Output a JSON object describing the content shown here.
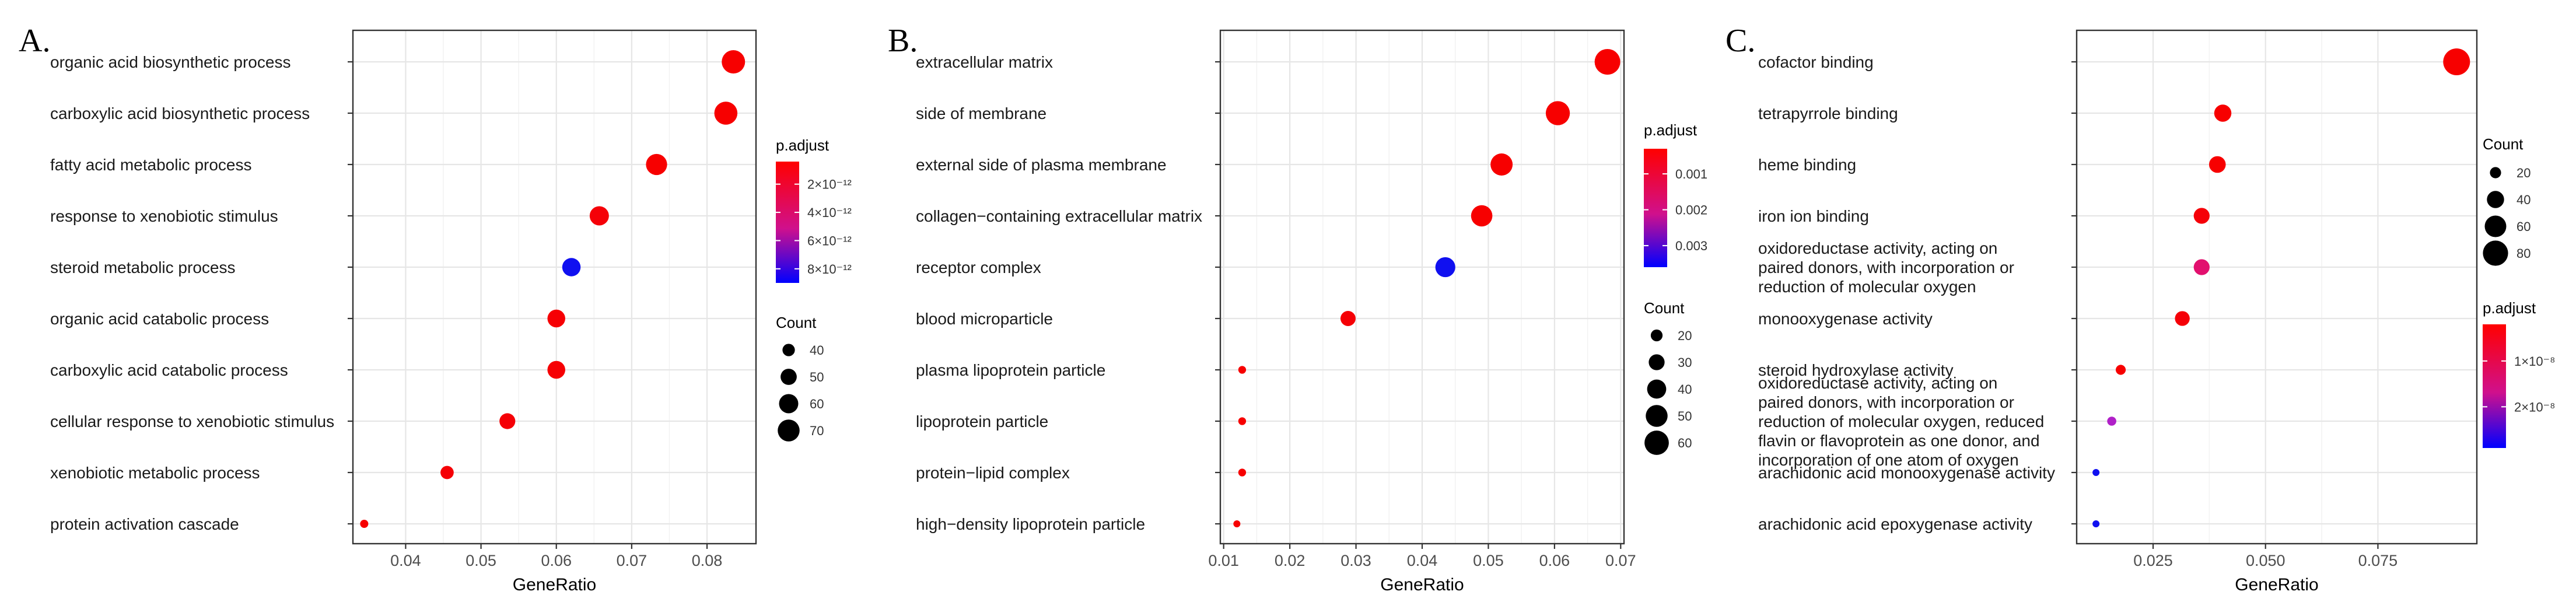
{
  "chart_data": [
    {
      "type": "scatter",
      "panel_label": "A.",
      "xlabel": "GeneRatio",
      "ylabel": "",
      "xlim": [
        0.033,
        0.0865
      ],
      "x_ticks": [
        "0.04",
        "0.05",
        "0.06",
        "0.07",
        "0.08"
      ],
      "x_tick_values": [
        0.04,
        0.05,
        0.06,
        0.07,
        0.08
      ],
      "grid": true,
      "legend_placement": "right",
      "categories": [
        "organic acid biosynthetic process",
        "carboxylic acid biosynthetic process",
        "fatty acid metabolic process",
        "response to xenobiotic stimulus",
        "steroid metabolic process",
        "organic acid catabolic process",
        "carboxylic acid catabolic process",
        "cellular response to xenobiotic stimulus",
        "xenobiotic metabolic process",
        "protein activation cascade"
      ],
      "points": [
        {
          "term": "organic acid biosynthetic process",
          "gene_ratio": 0.0835,
          "count": 76,
          "color": "#F70000"
        },
        {
          "term": "carboxylic acid biosynthetic process",
          "gene_ratio": 0.0825,
          "count": 75,
          "color": "#F70000"
        },
        {
          "term": "fatty acid metabolic process",
          "gene_ratio": 0.0733,
          "count": 67,
          "color": "#F70000"
        },
        {
          "term": "response to xenobiotic stimulus",
          "gene_ratio": 0.0657,
          "count": 60,
          "color": "#F50008"
        },
        {
          "term": "steroid metabolic process",
          "gene_ratio": 0.062,
          "count": 57,
          "color": "#1010F0"
        },
        {
          "term": "organic acid catabolic process",
          "gene_ratio": 0.06,
          "count": 55,
          "color": "#F60004"
        },
        {
          "term": "carboxylic acid catabolic process",
          "gene_ratio": 0.06,
          "count": 55,
          "color": "#F60004"
        },
        {
          "term": "cellular response to xenobiotic stimulus",
          "gene_ratio": 0.0535,
          "count": 49,
          "color": "#F50006"
        },
        {
          "term": "xenobiotic metabolic process",
          "gene_ratio": 0.0455,
          "count": 42,
          "color": "#F50006"
        },
        {
          "term": "protein activation cascade",
          "gene_ratio": 0.0345,
          "count": 32,
          "color": "#F70000"
        }
      ],
      "legend": {
        "color_title": "p.adjust",
        "color_ticks": [
          "2×10⁻¹²",
          "4×10⁻¹²",
          "6×10⁻¹²",
          "8×10⁻¹²"
        ],
        "color_tick_values": [
          2e-12,
          4e-12,
          6e-12,
          8e-12
        ],
        "color_range": [
          4e-13,
          9e-12
        ],
        "size_title": "Count",
        "size_labels": [
          "40",
          "50",
          "60",
          "70"
        ],
        "size_values": [
          40,
          50,
          60,
          70
        ],
        "count_range": [
          32,
          76
        ]
      }
    },
    {
      "type": "scatter",
      "panel_label": "B.",
      "xlabel": "GeneRatio",
      "ylabel": "",
      "xlim": [
        0.0095,
        0.0705
      ],
      "x_ticks": [
        "0.01",
        "0.02",
        "0.03",
        "0.04",
        "0.05",
        "0.06",
        "0.07"
      ],
      "x_tick_values": [
        0.01,
        0.02,
        0.03,
        0.04,
        0.05,
        0.06,
        0.07
      ],
      "grid": true,
      "legend_placement": "right",
      "categories": [
        "extracellular matrix",
        "side of membrane",
        "external side of plasma membrane",
        "collagen−containing extracellular matrix",
        "receptor complex",
        "blood microparticle",
        "plasma lipoprotein particle",
        "lipoprotein particle",
        "protein−lipid complex",
        "high−density lipoprotein particle"
      ],
      "points": [
        {
          "term": "extracellular matrix",
          "gene_ratio": 0.068,
          "count": 66,
          "color": "#F70000"
        },
        {
          "term": "side of membrane",
          "gene_ratio": 0.0605,
          "count": 59,
          "color": "#F70000"
        },
        {
          "term": "external side of plasma membrane",
          "gene_ratio": 0.052,
          "count": 51,
          "color": "#F70000"
        },
        {
          "term": "collagen−containing extracellular matrix",
          "gene_ratio": 0.049,
          "count": 48,
          "color": "#F70000"
        },
        {
          "term": "receptor complex",
          "gene_ratio": 0.0435,
          "count": 43,
          "color": "#1010F0"
        },
        {
          "term": "blood microparticle",
          "gene_ratio": 0.0288,
          "count": 28,
          "color": "#F50006"
        },
        {
          "term": "plasma lipoprotein particle",
          "gene_ratio": 0.0128,
          "count": 13,
          "color": "#F70000"
        },
        {
          "term": "lipoprotein particle",
          "gene_ratio": 0.0128,
          "count": 13,
          "color": "#F70000"
        },
        {
          "term": "protein−lipid complex",
          "gene_ratio": 0.0128,
          "count": 13,
          "color": "#F70000"
        },
        {
          "term": "high−density lipoprotein particle",
          "gene_ratio": 0.012,
          "count": 12,
          "color": "#F70000"
        }
      ],
      "legend": {
        "color_title": "p.adjust",
        "color_ticks": [
          "0.001",
          "0.002",
          "0.003"
        ],
        "color_tick_values": [
          0.001,
          0.002,
          0.003
        ],
        "color_range": [
          0.0003,
          0.0036
        ],
        "size_title": "Count",
        "size_labels": [
          "20",
          "30",
          "40",
          "50",
          "60"
        ],
        "size_values": [
          20,
          30,
          40,
          50,
          60
        ],
        "count_range": [
          12,
          66
        ]
      }
    },
    {
      "type": "scatter",
      "panel_label": "C.",
      "xlabel": "GeneRatio",
      "ylabel": "",
      "xlim": [
        0.008,
        0.097
      ],
      "x_ticks": [
        "0.025",
        "0.050",
        "0.075"
      ],
      "x_tick_values": [
        0.025,
        0.05,
        0.075
      ],
      "grid": true,
      "legend_placement": "right",
      "categories": [
        "cofactor binding",
        "tetrapyrrole binding",
        "heme binding",
        "iron ion binding",
        "oxidoreductase activity, acting on paired donors, with incorporation or reduction of molecular oxygen",
        "monooxygenase activity",
        "steroid hydroxylase activity",
        "oxidoreductase activity, acting on paired donors, with incorporation or reduction of molecular oxygen, reduced flavin or flavoprotein as one donor, and incorporation of one atom of oxygen",
        "arachidonic acid monooxygenase activity",
        "arachidonic acid epoxygenase activity"
      ],
      "category_lines": [
        [
          "cofactor binding"
        ],
        [
          "tetrapyrrole binding"
        ],
        [
          "heme binding"
        ],
        [
          "iron ion binding"
        ],
        [
          "oxidoreductase activity, acting on",
          "paired donors, with incorporation or",
          "reduction of molecular oxygen"
        ],
        [
          "monooxygenase activity"
        ],
        [
          "steroid hydroxylase activity"
        ],
        [
          "oxidoreductase activity, acting on",
          "paired donors, with incorporation or",
          "reduction of molecular oxygen, reduced",
          "flavin or flavoprotein as one donor, and",
          "incorporation of one atom of oxygen"
        ],
        [
          "arachidonic acid monooxygenase activity"
        ],
        [
          "arachidonic acid epoxygenase activity"
        ]
      ],
      "points": [
        {
          "term": "cofactor binding",
          "gene_ratio": 0.0925,
          "count": 90,
          "color": "#F70000"
        },
        {
          "term": "tetrapyrrole binding",
          "gene_ratio": 0.0405,
          "count": 40,
          "color": "#F70000"
        },
        {
          "term": "heme binding",
          "gene_ratio": 0.0393,
          "count": 38,
          "color": "#F70000"
        },
        {
          "term": "iron ion binding",
          "gene_ratio": 0.0358,
          "count": 35,
          "color": "#F50008"
        },
        {
          "term": "oxidoreductase activity, acting on paired donors, with incorporation or reduction of molecular oxygen",
          "gene_ratio": 0.0358,
          "count": 35,
          "color": "#E2106E"
        },
        {
          "term": "monooxygenase activity",
          "gene_ratio": 0.0315,
          "count": 31,
          "color": "#F50008"
        },
        {
          "term": "steroid hydroxylase activity",
          "gene_ratio": 0.0178,
          "count": 17,
          "color": "#F70000"
        },
        {
          "term": "oxidoreductase activity, acting on paired donors, with incorporation or reduction of molecular oxygen, reduced flavin or flavoprotein as one donor, and incorporation of one atom of oxygen",
          "gene_ratio": 0.0158,
          "count": 15,
          "color": "#B020C8"
        },
        {
          "term": "arachidonic acid monooxygenase activity",
          "gene_ratio": 0.0123,
          "count": 11,
          "color": "#1010F0"
        },
        {
          "term": "arachidonic acid epoxygenase activity",
          "gene_ratio": 0.0123,
          "count": 11,
          "color": "#1010F0"
        }
      ],
      "legend": {
        "color_title": "p.adjust",
        "color_ticks": [
          "1×10⁻⁸",
          "2×10⁻⁸"
        ],
        "color_tick_values": [
          1e-08,
          2e-08
        ],
        "color_range": [
          2e-09,
          2.9e-08
        ],
        "size_title": "Count",
        "size_labels": [
          "20",
          "40",
          "60",
          "80"
        ],
        "size_values": [
          20,
          40,
          60,
          80
        ],
        "count_range": [
          11,
          90
        ]
      }
    }
  ],
  "colors": {
    "high": "#FF0000",
    "low": "#0000FF",
    "grid": "#EBEBEB",
    "point_ink": "#000000"
  }
}
